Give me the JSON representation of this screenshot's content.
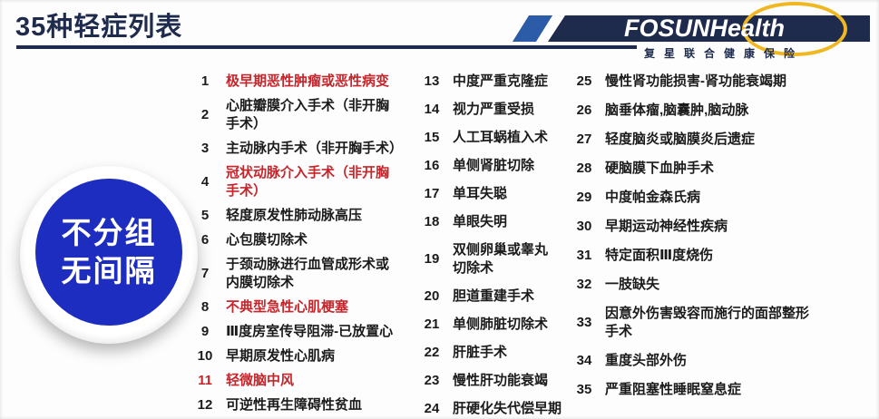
{
  "title": "35种轻症列表",
  "logo": {
    "brand_main": "FOSUN",
    "brand_sub": "Health",
    "tagline": "复星联合健康保险"
  },
  "badge": {
    "line1": "不分组",
    "line2": "无间隔"
  },
  "colors": {
    "navy": "#1E2B4D",
    "red": "#C4262B",
    "badge_blue": "#1C2DC0",
    "yellow": "#EFB822"
  },
  "list": {
    "columns": [
      {
        "items": [
          {
            "n": "1",
            "text": "极早期恶性肿瘤或恶性病变",
            "red": true
          },
          {
            "n": "2",
            "text": "心脏瓣膜介入手术（非开胸\n手术）"
          },
          {
            "n": "3",
            "text": "主动脉内手术（非开胸手术）"
          },
          {
            "n": "4",
            "text": "冠状动脉介入手术（非开胸\n手术）",
            "red": true
          },
          {
            "n": "5",
            "text": "轻度原发性肺动脉高压"
          },
          {
            "n": "6",
            "text": "心包膜切除术"
          },
          {
            "n": "7",
            "text": "于颈动脉进行血管成形术或\n内膜切除术"
          },
          {
            "n": "8",
            "text": "不典型急性心肌梗塞",
            "red": true
          },
          {
            "n": "9",
            "text": "Ⅲ度房室传导阻滞-已放置心"
          },
          {
            "n": "10",
            "text": "早期原发性心肌病"
          },
          {
            "n": "11",
            "text": "轻微脑中风",
            "red": true,
            "red_num": true
          },
          {
            "n": "12",
            "text": "可逆性再生障碍性贫血"
          }
        ]
      },
      {
        "items": [
          {
            "n": "13",
            "text": "中度严重克隆症"
          },
          {
            "n": "14",
            "text": "视力严重受损"
          },
          {
            "n": "15",
            "text": "人工耳蜗植入术"
          },
          {
            "n": "16",
            "text": "单侧肾脏切除"
          },
          {
            "n": "17",
            "text": "单耳失聪"
          },
          {
            "n": "18",
            "text": "单眼失明"
          },
          {
            "n": "19",
            "text": "双侧卵巢或睾丸\n切除术"
          },
          {
            "n": "20",
            "text": "胆道重建手术"
          },
          {
            "n": "21",
            "text": "单侧肺脏切除术"
          },
          {
            "n": "22",
            "text": "肝脏手术"
          },
          {
            "n": "23",
            "text": "慢性肝功能衰竭"
          },
          {
            "n": "24",
            "text": "肝硬化失代偿早期"
          }
        ]
      },
      {
        "items": [
          {
            "n": "25",
            "text": "慢性肾功能损害-肾功能衰竭期"
          },
          {
            "n": "26",
            "text": "脑垂体瘤,脑囊肿,脑动脉"
          },
          {
            "n": "27",
            "text": "轻度脑炎或脑膜炎后遗症"
          },
          {
            "n": "28",
            "text": "硬脑膜下血肿手术"
          },
          {
            "n": "29",
            "text": "中度帕金森氏病"
          },
          {
            "n": "30",
            "text": "早期运动神经性疾病"
          },
          {
            "n": "31",
            "text": "特定面积Ⅲ度烧伤"
          },
          {
            "n": "32",
            "text": "一肢缺失"
          },
          {
            "n": "33",
            "text": "因意外伤害毁容而施行的面部整形\n手术"
          },
          {
            "n": "34",
            "text": "重度头部外伤"
          },
          {
            "n": "35",
            "text": "严重阻塞性睡眠窒息症"
          }
        ]
      }
    ]
  }
}
